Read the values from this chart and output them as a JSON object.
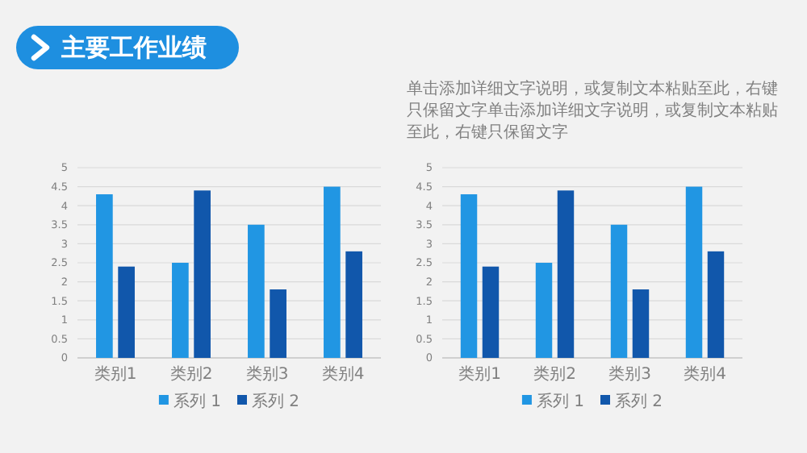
{
  "chart_data": [
    {
      "type": "bar",
      "title": "主要工作业绩",
      "categories": [
        "类别1",
        "类别2",
        "类别3",
        "类别4"
      ],
      "series": [
        {
          "name": "系列 1",
          "color": "#2196e3",
          "values": [
            4.3,
            2.5,
            3.5,
            4.5
          ]
        },
        {
          "name": "系列 2",
          "color": "#1157ab",
          "values": [
            2.4,
            4.4,
            1.8,
            2.8
          ]
        }
      ],
      "ylim": [
        0,
        5
      ],
      "yticks": [
        0,
        0.5,
        1,
        1.5,
        2,
        2.5,
        3,
        3.5,
        4,
        4.5,
        5
      ],
      "grid": "y",
      "legend": "bottom"
    },
    {
      "type": "bar",
      "annotations": [
        "单击添加详细文字说明，或复制文本粘贴至此，右键只保留文字单击添加详细文字说明，或复制文本粘贴至此，右键只保留文字"
      ],
      "categories": [
        "类别1",
        "类别2",
        "类别3",
        "类别4"
      ],
      "series": [
        {
          "name": "系列 1",
          "color": "#2196e3",
          "values": [
            4.3,
            2.5,
            3.5,
            4.5
          ]
        },
        {
          "name": "系列 2",
          "color": "#1157ab",
          "values": [
            2.4,
            4.4,
            1.8,
            2.8
          ]
        }
      ],
      "ylim": [
        0,
        5
      ],
      "yticks": [
        0,
        0.5,
        1,
        1.5,
        2,
        2.5,
        3,
        3.5,
        4,
        4.5,
        5
      ],
      "grid": "y",
      "legend": "bottom"
    }
  ]
}
